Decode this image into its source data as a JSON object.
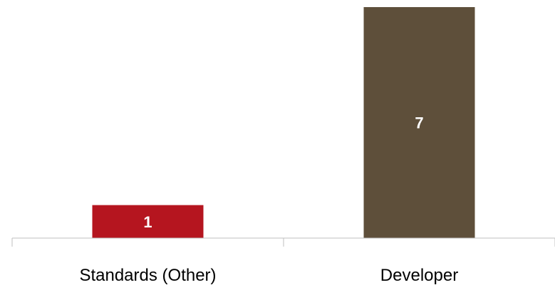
{
  "chart_data": {
    "type": "bar",
    "categories": [
      "Standards (Other)",
      "Developer"
    ],
    "values": [
      1,
      7
    ],
    "colors": [
      "#b5151f",
      "#5e4f3a"
    ],
    "data_labels": [
      "1",
      "7"
    ],
    "title": "",
    "xlabel": "",
    "ylabel": "",
    "ylim": [
      0,
      7
    ],
    "grid": false,
    "legend": "none"
  }
}
